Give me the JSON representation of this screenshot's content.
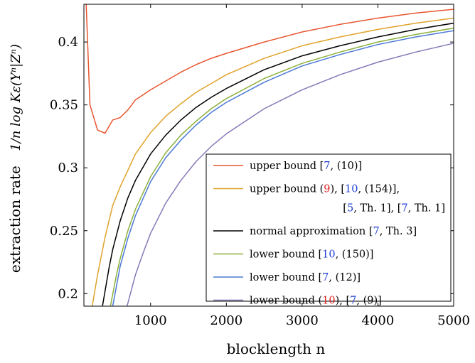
{
  "chart_data": {
    "type": "line",
    "xlabel": "blocklength n",
    "ylabel_prefix": "extraction rate",
    "ylabel_formula": "1/n log Kε(Yⁿ|Zⁿ)",
    "xlim": [
      120,
      5000
    ],
    "ylim": [
      0.19,
      0.43
    ],
    "x_ticks": [
      {
        "value": 1000,
        "label": "1000"
      },
      {
        "value": 2000,
        "label": "2000"
      },
      {
        "value": 3000,
        "label": "3000"
      },
      {
        "value": 4000,
        "label": "4000"
      },
      {
        "value": 5000,
        "label": "5000"
      }
    ],
    "y_ticks": [
      {
        "value": 0.2,
        "label": "0.2"
      },
      {
        "value": 0.25,
        "label": "0.25"
      },
      {
        "value": 0.3,
        "label": "0.3"
      },
      {
        "value": 0.35,
        "label": "0.35"
      },
      {
        "value": 0.4,
        "label": "0.4"
      }
    ],
    "grid": false,
    "legend_position": "bottom-right",
    "series": [
      {
        "color": "#e8562f",
        "legend": [
          [
            {
              "t": "upper bound [",
              "c": "#000"
            },
            {
              "t": "7",
              "c": "#1f3fd6"
            },
            {
              "t": ", (10)]",
              "c": "#000"
            }
          ]
        ],
        "points": [
          [
            150,
            0.43
          ],
          [
            200,
            0.35
          ],
          [
            300,
            0.33
          ],
          [
            400,
            0.3275
          ],
          [
            500,
            0.338
          ],
          [
            600,
            0.34
          ],
          [
            700,
            0.346
          ],
          [
            800,
            0.354
          ],
          [
            1000,
            0.362
          ],
          [
            1200,
            0.369
          ],
          [
            1400,
            0.376
          ],
          [
            1600,
            0.382
          ],
          [
            1800,
            0.387
          ],
          [
            2000,
            0.391
          ],
          [
            2500,
            0.4
          ],
          [
            3000,
            0.408
          ],
          [
            3500,
            0.414
          ],
          [
            4000,
            0.419
          ],
          [
            4500,
            0.423
          ],
          [
            5000,
            0.426
          ]
        ]
      },
      {
        "color": "#e0a22b",
        "legend": [
          [
            {
              "t": "upper bound (",
              "c": "#000"
            },
            {
              "t": "9",
              "c": "#e02020"
            },
            {
              "t": "), [",
              "c": "#000"
            },
            {
              "t": "10",
              "c": "#1f3fd6"
            },
            {
              "t": ", (154)],",
              "c": "#000"
            }
          ],
          [
            {
              "t": "[",
              "c": "#000"
            },
            {
              "t": "5",
              "c": "#1f3fd6"
            },
            {
              "t": ", Th. 1], [",
              "c": "#000"
            },
            {
              "t": "7",
              "c": "#1f3fd6"
            },
            {
              "t": ", Th. 1]",
              "c": "#000"
            }
          ]
        ],
        "points": [
          [
            230,
            0.19
          ],
          [
            300,
            0.215
          ],
          [
            400,
            0.245
          ],
          [
            500,
            0.27
          ],
          [
            600,
            0.285
          ],
          [
            700,
            0.298
          ],
          [
            800,
            0.311
          ],
          [
            1000,
            0.328
          ],
          [
            1200,
            0.341
          ],
          [
            1400,
            0.351
          ],
          [
            1600,
            0.36
          ],
          [
            1800,
            0.367
          ],
          [
            2000,
            0.374
          ],
          [
            2500,
            0.387
          ],
          [
            3000,
            0.397
          ],
          [
            3500,
            0.404
          ],
          [
            4000,
            0.41
          ],
          [
            4500,
            0.415
          ],
          [
            5000,
            0.419
          ]
        ]
      },
      {
        "color": "#000000",
        "legend": [
          [
            {
              "t": "normal approximation [",
              "c": "#000"
            },
            {
              "t": "7",
              "c": "#1f3fd6"
            },
            {
              "t": ", Th. 3]",
              "c": "#000"
            }
          ]
        ],
        "points": [
          [
            365,
            0.19
          ],
          [
            450,
            0.22
          ],
          [
            500,
            0.235
          ],
          [
            600,
            0.258
          ],
          [
            700,
            0.276
          ],
          [
            800,
            0.29
          ],
          [
            1000,
            0.311
          ],
          [
            1200,
            0.326
          ],
          [
            1400,
            0.338
          ],
          [
            1600,
            0.348
          ],
          [
            1800,
            0.356
          ],
          [
            2000,
            0.363
          ],
          [
            2500,
            0.378
          ],
          [
            3000,
            0.389
          ],
          [
            3500,
            0.397
          ],
          [
            4000,
            0.404
          ],
          [
            4500,
            0.41
          ],
          [
            5000,
            0.415
          ]
        ]
      },
      {
        "color": "#8cb03a",
        "legend": [
          [
            {
              "t": "lower bound [",
              "c": "#000"
            },
            {
              "t": "10",
              "c": "#1f3fd6"
            },
            {
              "t": ", (150)]",
              "c": "#000"
            }
          ]
        ],
        "points": [
          [
            470,
            0.19
          ],
          [
            550,
            0.215
          ],
          [
            600,
            0.228
          ],
          [
            700,
            0.25
          ],
          [
            800,
            0.267
          ],
          [
            1000,
            0.293
          ],
          [
            1200,
            0.312
          ],
          [
            1400,
            0.326
          ],
          [
            1600,
            0.337
          ],
          [
            1800,
            0.347
          ],
          [
            2000,
            0.355
          ],
          [
            2500,
            0.371
          ],
          [
            3000,
            0.383
          ],
          [
            3500,
            0.392
          ],
          [
            4000,
            0.4
          ],
          [
            4500,
            0.406
          ],
          [
            5000,
            0.411
          ]
        ]
      },
      {
        "color": "#4a78d6",
        "legend": [
          [
            {
              "t": "lower bound [",
              "c": "#000"
            },
            {
              "t": "7",
              "c": "#1f3fd6"
            },
            {
              "t": ", (12)]",
              "c": "#000"
            }
          ]
        ],
        "points": [
          [
            500,
            0.19
          ],
          [
            600,
            0.222
          ],
          [
            700,
            0.244
          ],
          [
            800,
            0.262
          ],
          [
            1000,
            0.289
          ],
          [
            1200,
            0.308
          ],
          [
            1400,
            0.322
          ],
          [
            1600,
            0.334
          ],
          [
            1800,
            0.344
          ],
          [
            2000,
            0.352
          ],
          [
            2500,
            0.368
          ],
          [
            3000,
            0.381
          ],
          [
            3500,
            0.39
          ],
          [
            4000,
            0.398
          ],
          [
            4500,
            0.404
          ],
          [
            5000,
            0.409
          ]
        ]
      },
      {
        "color": "#8878b8",
        "legend": [
          [
            {
              "t": "lower bound (",
              "c": "#000"
            },
            {
              "t": "10",
              "c": "#e02020"
            },
            {
              "t": "), [",
              "c": "#000"
            },
            {
              "t": "7",
              "c": "#1f3fd6"
            },
            {
              "t": ", (9)]",
              "c": "#000"
            }
          ]
        ],
        "points": [
          [
            690,
            0.19
          ],
          [
            800,
            0.215
          ],
          [
            900,
            0.232
          ],
          [
            1000,
            0.248
          ],
          [
            1200,
            0.272
          ],
          [
            1400,
            0.29
          ],
          [
            1600,
            0.305
          ],
          [
            1800,
            0.317
          ],
          [
            2000,
            0.327
          ],
          [
            2500,
            0.347
          ],
          [
            3000,
            0.362
          ],
          [
            3500,
            0.374
          ],
          [
            4000,
            0.384
          ],
          [
            4500,
            0.392
          ],
          [
            5000,
            0.399
          ]
        ]
      }
    ]
  }
}
